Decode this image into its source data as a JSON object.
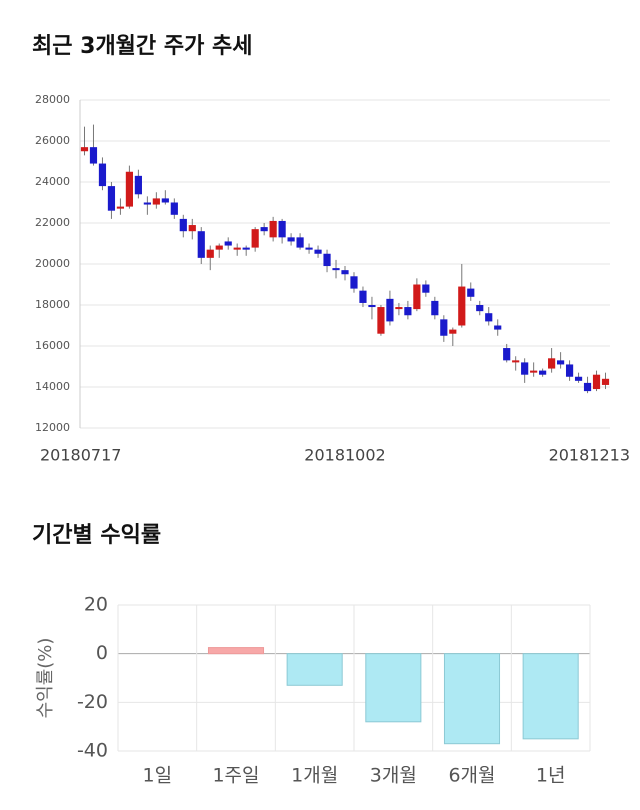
{
  "chart_data": [
    {
      "type": "candlestick",
      "title": "최근 3개월간 주가 추세",
      "categories": [
        "20180717",
        null,
        null,
        null,
        null,
        null,
        null,
        null,
        null,
        null,
        null,
        null,
        null,
        null,
        null,
        null,
        null,
        null,
        null,
        null,
        null,
        null,
        null,
        null,
        null,
        null,
        null,
        null,
        null,
        "20181002",
        null,
        null,
        null,
        null,
        null,
        null,
        null,
        null,
        null,
        null,
        null,
        null,
        null,
        null,
        null,
        null,
        null,
        null,
        null,
        null,
        null,
        null,
        null,
        null,
        null,
        null,
        null,
        null,
        "20181213"
      ],
      "open": [
        25500,
        25700,
        24900,
        23800,
        22700,
        22800,
        24300,
        23000,
        22900,
        23200,
        23000,
        22200,
        21600,
        21600,
        20300,
        20700,
        21100,
        20700,
        20800,
        20800,
        21800,
        21300,
        22100,
        21300,
        21300,
        20800,
        20700,
        20500,
        19800,
        19700,
        19400,
        18700,
        18000,
        16600,
        18300,
        17800,
        17900,
        17800,
        19000,
        18200,
        17300,
        16600,
        17000,
        18800,
        18000,
        17600,
        17000,
        15900,
        15200,
        15200,
        14700,
        14800,
        14900,
        15300,
        15100,
        14500,
        14200,
        13900,
        14100
      ],
      "high": [
        26700,
        26800,
        25200,
        24000,
        23200,
        24800,
        24600,
        23300,
        23500,
        23600,
        23200,
        22400,
        22200,
        21800,
        20900,
        21000,
        21300,
        21000,
        20900,
        21800,
        22000,
        22300,
        22200,
        21500,
        21500,
        21000,
        20900,
        20700,
        20200,
        19900,
        19600,
        18900,
        18400,
        18000,
        18700,
        18100,
        18200,
        19300,
        19200,
        18400,
        17500,
        16900,
        20000,
        19100,
        18200,
        17900,
        17300,
        16100,
        15500,
        15400,
        15200,
        14900,
        15900,
        15700,
        15300,
        14700,
        14500,
        14800,
        14700
      ],
      "low": [
        25300,
        24800,
        23600,
        22200,
        22400,
        22700,
        23200,
        22400,
        22700,
        22900,
        22200,
        21300,
        21200,
        20000,
        19700,
        20300,
        20700,
        20400,
        20400,
        20600,
        21400,
        21100,
        21000,
        20900,
        20700,
        20500,
        20300,
        19600,
        19300,
        19200,
        18600,
        17900,
        17300,
        16500,
        17000,
        17500,
        17300,
        17700,
        18400,
        17300,
        16200,
        16000,
        16900,
        18200,
        17500,
        17000,
        16500,
        15200,
        14800,
        14200,
        14500,
        14500,
        14700,
        14900,
        14300,
        14200,
        13700,
        13800,
        13900
      ],
      "close": [
        25700,
        24900,
        23800,
        22600,
        22800,
        24500,
        23400,
        22900,
        23200,
        23000,
        22400,
        21600,
        21900,
        20300,
        20700,
        20900,
        20900,
        20800,
        20700,
        21700,
        21600,
        22100,
        21300,
        21100,
        20800,
        20700,
        20500,
        19900,
        19700,
        19500,
        18800,
        18100,
        17900,
        17900,
        17200,
        17900,
        17500,
        19000,
        18600,
        17500,
        16500,
        16800,
        18900,
        18400,
        17700,
        17200,
        16800,
        15300,
        15300,
        14600,
        14800,
        14600,
        15400,
        15100,
        14500,
        14300,
        13800,
        14600,
        14400
      ],
      "up_color": "#d11a1a",
      "down_color": "#1a1acc",
      "ylim": [
        12000,
        28000
      ],
      "yticks": [
        12000,
        14000,
        16000,
        18000,
        20000,
        22000,
        24000,
        26000,
        28000
      ],
      "grid": true
    },
    {
      "type": "bar",
      "title": "기간별 수익률",
      "y_label": "수익률(%)",
      "categories": [
        "1일",
        "1주일",
        "1개월",
        "3개월",
        "6개월",
        "1년"
      ],
      "values": [
        0,
        2.5,
        -13,
        -28,
        -37,
        -35
      ],
      "positive_color": "#f7a8a8",
      "negative_color": "#aee9f3",
      "ylim": [
        -40,
        20
      ],
      "yticks": [
        -40,
        -20,
        0,
        20
      ],
      "grid": true
    }
  ]
}
